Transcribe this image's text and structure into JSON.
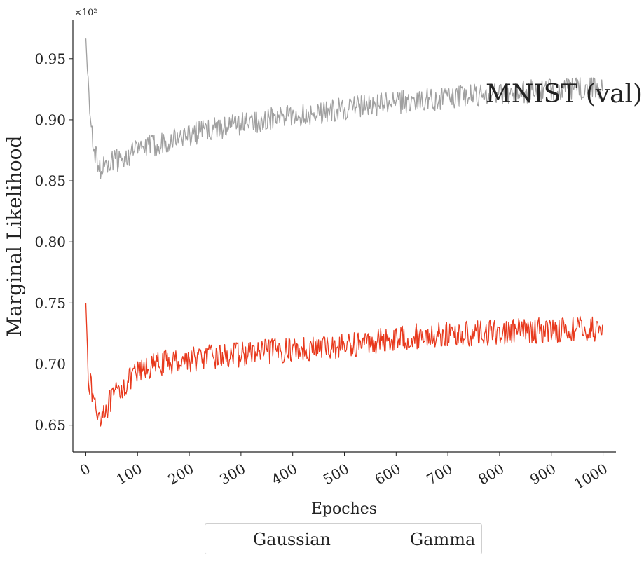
{
  "chart_data": {
    "type": "line",
    "title": "MNIST (val)",
    "xlabel": "Epoches",
    "ylabel": "Marginal Likelihood",
    "y_multiplier": "×10²",
    "xlim": [
      -25,
      1025
    ],
    "ylim": [
      0.628,
      0.982
    ],
    "x_ticks": [
      0,
      100,
      200,
      300,
      400,
      500,
      600,
      700,
      800,
      900,
      1000
    ],
    "y_ticks": [
      0.65,
      0.7,
      0.75,
      0.8,
      0.85,
      0.9,
      0.95
    ],
    "y_tick_labels": [
      "0.65",
      "0.70",
      "0.75",
      "0.80",
      "0.85",
      "0.90",
      "0.95"
    ],
    "legend_position": "bottom-center, below axes",
    "grid": false,
    "series": [
      {
        "name": "Gaussian",
        "color": "#e8391d",
        "x": [
          0,
          5,
          10,
          15,
          20,
          25,
          30,
          40,
          50,
          60,
          70,
          80,
          100,
          120,
          150,
          200,
          250,
          300,
          350,
          400,
          450,
          500,
          550,
          600,
          650,
          700,
          750,
          800,
          850,
          900,
          950,
          1000
        ],
        "values": [
          0.75,
          0.69,
          0.68,
          0.672,
          0.662,
          0.658,
          0.66,
          0.665,
          0.67,
          0.676,
          0.681,
          0.685,
          0.692,
          0.697,
          0.701,
          0.704,
          0.706,
          0.708,
          0.71,
          0.712,
          0.713,
          0.715,
          0.718,
          0.721,
          0.723,
          0.724,
          0.725,
          0.726,
          0.727,
          0.728,
          0.729,
          0.728
        ]
      },
      {
        "name": "Gamma",
        "color": "#a0a0a0",
        "x": [
          0,
          3,
          6,
          10,
          15,
          20,
          25,
          30,
          40,
          50,
          60,
          70,
          80,
          100,
          120,
          150,
          200,
          250,
          300,
          350,
          400,
          450,
          500,
          550,
          600,
          650,
          700,
          750,
          800,
          850,
          900,
          950,
          1000
        ],
        "values": [
          0.967,
          0.94,
          0.915,
          0.895,
          0.88,
          0.868,
          0.862,
          0.86,
          0.862,
          0.865,
          0.867,
          0.869,
          0.871,
          0.875,
          0.878,
          0.882,
          0.888,
          0.893,
          0.897,
          0.9,
          0.903,
          0.906,
          0.909,
          0.912,
          0.914,
          0.916,
          0.918,
          0.92,
          0.922,
          0.923,
          0.924,
          0.925,
          0.926
        ]
      }
    ]
  }
}
